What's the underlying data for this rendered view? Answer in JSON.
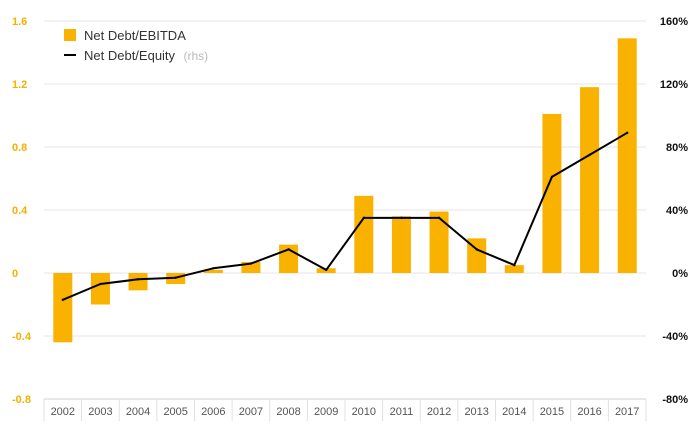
{
  "chart_data": {
    "type": "bar",
    "categories": [
      "2002",
      "2003",
      "2004",
      "2005",
      "2006",
      "2007",
      "2008",
      "2009",
      "2010",
      "2011",
      "2012",
      "2013",
      "2014",
      "2015",
      "2016",
      "2017"
    ],
    "series": [
      {
        "name": "Net Debt/EBITDA",
        "type": "bar",
        "axis": "left",
        "color": "#f9b200",
        "values": [
          -0.44,
          -0.2,
          -0.11,
          -0.07,
          0.02,
          0.07,
          0.18,
          0.03,
          0.49,
          0.36,
          0.39,
          0.22,
          0.05,
          1.01,
          1.18,
          1.49
        ]
      },
      {
        "name": "Net Debt/Equity",
        "name_suffix": "(rhs)",
        "type": "line",
        "axis": "right",
        "color": "#000000",
        "values": [
          -17,
          -7,
          -4,
          -3,
          3,
          6,
          15,
          2,
          35,
          35,
          35,
          15,
          5,
          61,
          75,
          89
        ]
      }
    ],
    "ylim_left": [
      -0.8,
      1.6
    ],
    "yticks_left": [
      "1.6",
      "1.2",
      "0.8",
      "0.4",
      "0",
      "-0.4",
      "-0.8"
    ],
    "ylim_right": [
      -80,
      160
    ],
    "yticks_right": [
      "160%",
      "120%",
      "80%",
      "40%",
      "0%",
      "-40%",
      "-80%"
    ],
    "grid": true,
    "legend": "top-left"
  }
}
